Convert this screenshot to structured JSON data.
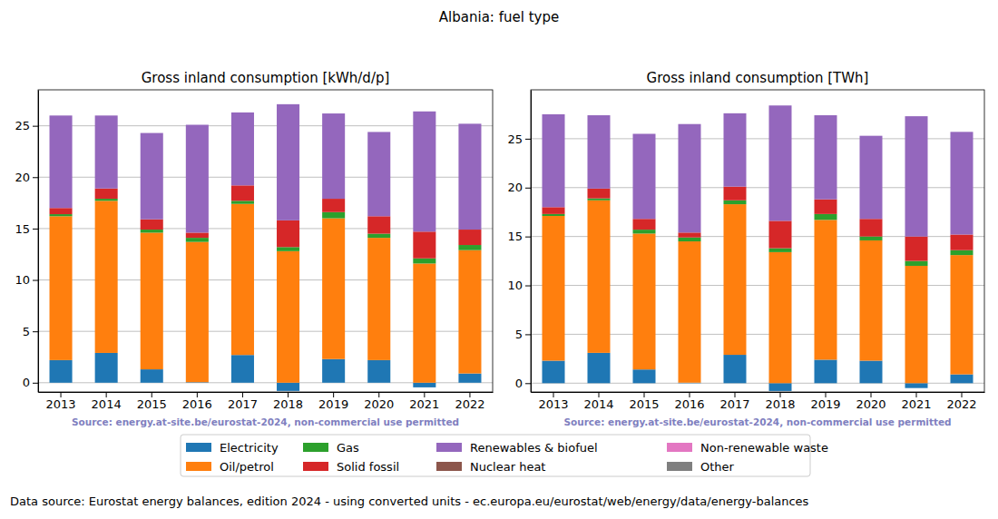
{
  "title": "Albania: fuel type",
  "footer": "Data source: Eurostat energy balances, edition 2024 - using converted units - ec.europa.eu/eurostat/web/energy/data/energy-balances",
  "chart_data": [
    {
      "type": "bar",
      "stacked": true,
      "grid": true,
      "legend": "bottom",
      "title": "Gross inland consumption [kWh/d/p]",
      "source": "Source: energy.at-site.be/eurostat-2024, non-commercial use permitted",
      "categories": [
        "2013",
        "2014",
        "2015",
        "2016",
        "2017",
        "2018",
        "2019",
        "2020",
        "2021",
        "2022"
      ],
      "ylim": [
        -0.9,
        28.5
      ],
      "yticks": [
        0,
        5,
        10,
        15,
        20,
        25
      ],
      "series": [
        {
          "name": "Electricity",
          "color": "#1f77b4",
          "values": [
            2.2,
            2.9,
            1.3,
            0.05,
            2.7,
            -0.8,
            2.3,
            2.2,
            -0.45,
            0.9
          ]
        },
        {
          "name": "Oil/petrol",
          "color": "#ff7f0e",
          "values": [
            14.0,
            14.8,
            13.3,
            13.65,
            14.7,
            12.8,
            13.7,
            11.9,
            11.6,
            12.0
          ]
        },
        {
          "name": "Gas",
          "color": "#2ca02c",
          "values": [
            0.2,
            0.2,
            0.3,
            0.4,
            0.3,
            0.4,
            0.6,
            0.4,
            0.5,
            0.5
          ]
        },
        {
          "name": "Solid fossil",
          "color": "#d62728",
          "values": [
            0.6,
            1.0,
            1.0,
            0.5,
            1.5,
            2.6,
            1.3,
            1.7,
            2.6,
            1.5
          ]
        },
        {
          "name": "Renewables & biofuel",
          "color": "#9467bd",
          "values": [
            9.0,
            7.1,
            8.4,
            10.5,
            7.1,
            11.3,
            8.3,
            8.2,
            11.7,
            10.3
          ]
        },
        {
          "name": "Nuclear heat",
          "color": "#8c564b",
          "values": [
            0,
            0,
            0,
            0,
            0,
            0,
            0,
            0,
            0,
            0
          ]
        },
        {
          "name": "Non-renewable waste",
          "color": "#e377c2",
          "values": [
            0,
            0,
            0,
            0,
            0,
            0,
            0,
            0,
            0,
            0
          ]
        },
        {
          "name": "Other",
          "color": "#7f7f7f",
          "values": [
            0,
            0,
            0,
            0,
            0,
            0,
            0,
            0,
            0,
            0
          ]
        }
      ]
    },
    {
      "type": "bar",
      "stacked": true,
      "grid": true,
      "legend": "bottom",
      "title": "Gross inland consumption [TWh]",
      "source": "Source: energy.at-site.be/eurostat-2024, non-commercial use permitted",
      "categories": [
        "2013",
        "2014",
        "2015",
        "2016",
        "2017",
        "2018",
        "2019",
        "2020",
        "2021",
        "2022"
      ],
      "ylim": [
        -0.9,
        30.0
      ],
      "yticks": [
        0,
        5,
        10,
        15,
        20,
        25
      ],
      "series": [
        {
          "name": "Electricity",
          "color": "#1f77b4",
          "values": [
            2.3,
            3.1,
            1.4,
            0.05,
            2.9,
            -0.8,
            2.4,
            2.3,
            -0.5,
            0.9
          ]
        },
        {
          "name": "Oil/petrol",
          "color": "#ff7f0e",
          "values": [
            14.8,
            15.6,
            13.9,
            14.45,
            15.4,
            13.4,
            14.3,
            12.3,
            12.0,
            12.2
          ]
        },
        {
          "name": "Gas",
          "color": "#2ca02c",
          "values": [
            0.2,
            0.2,
            0.4,
            0.4,
            0.4,
            0.4,
            0.6,
            0.4,
            0.5,
            0.5
          ]
        },
        {
          "name": "Solid fossil",
          "color": "#d62728",
          "values": [
            0.7,
            1.0,
            1.1,
            0.5,
            1.4,
            2.8,
            1.5,
            1.8,
            2.5,
            1.6
          ]
        },
        {
          "name": "Renewables & biofuel",
          "color": "#9467bd",
          "values": [
            9.5,
            7.5,
            8.7,
            11.1,
            7.5,
            11.8,
            8.6,
            8.5,
            12.3,
            10.5
          ]
        },
        {
          "name": "Nuclear heat",
          "color": "#8c564b",
          "values": [
            0,
            0,
            0,
            0,
            0,
            0,
            0,
            0,
            0,
            0
          ]
        },
        {
          "name": "Non-renewable waste",
          "color": "#e377c2",
          "values": [
            0,
            0,
            0,
            0,
            0,
            0,
            0,
            0,
            0,
            0
          ]
        },
        {
          "name": "Other",
          "color": "#7f7f7f",
          "values": [
            0,
            0,
            0,
            0,
            0,
            0,
            0,
            0,
            0,
            0
          ]
        }
      ]
    }
  ]
}
